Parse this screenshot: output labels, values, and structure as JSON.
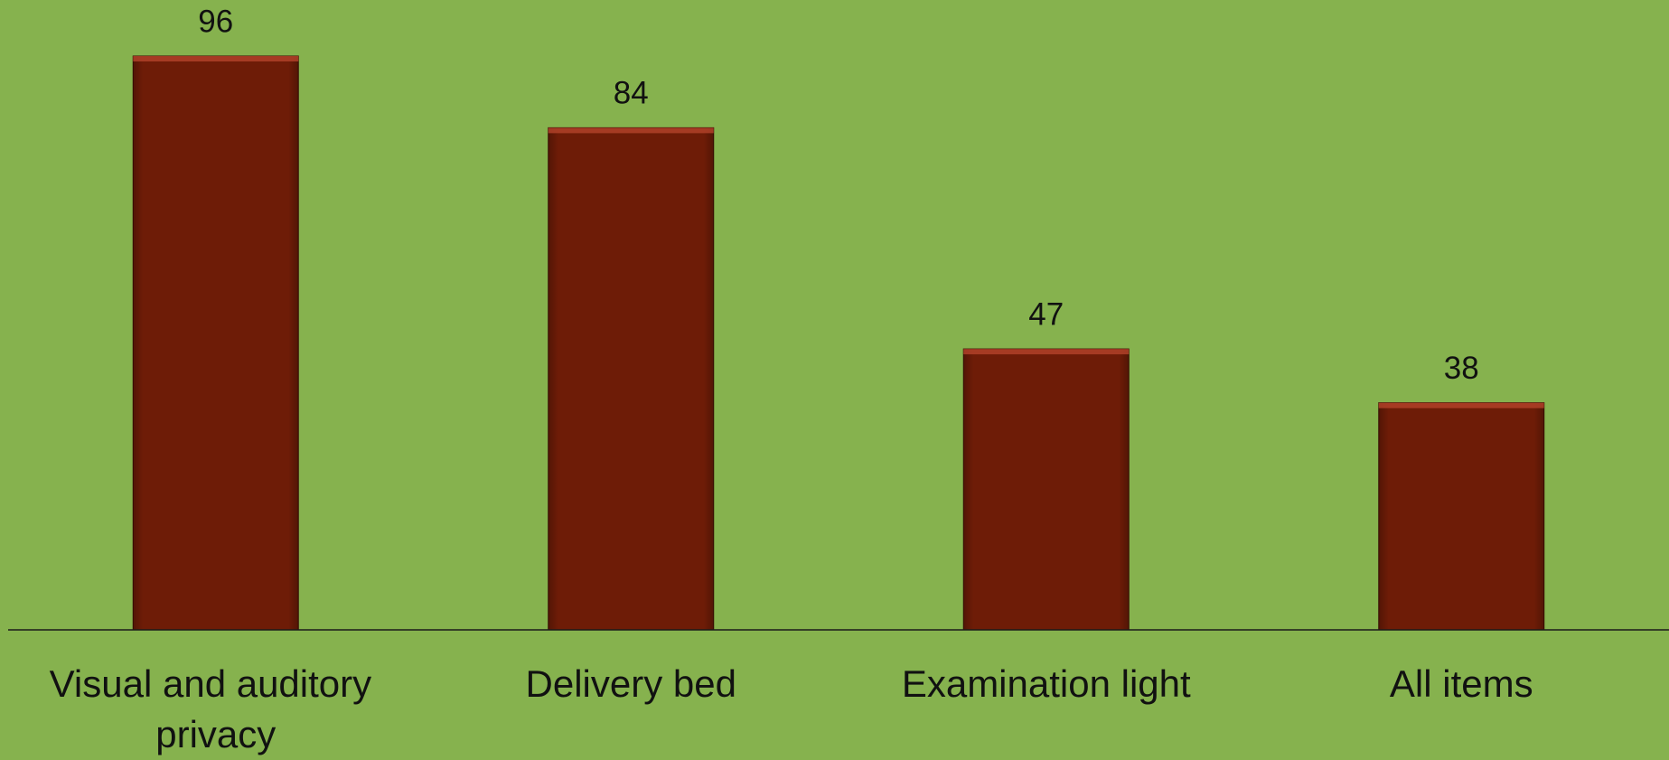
{
  "chart_data": {
    "type": "bar",
    "categories": [
      "Visual and auditory privacy",
      "Delivery bed",
      "Examination light",
      "All items"
    ],
    "values": [
      96,
      84,
      47,
      38
    ],
    "color": "#6e1c07"
  }
}
